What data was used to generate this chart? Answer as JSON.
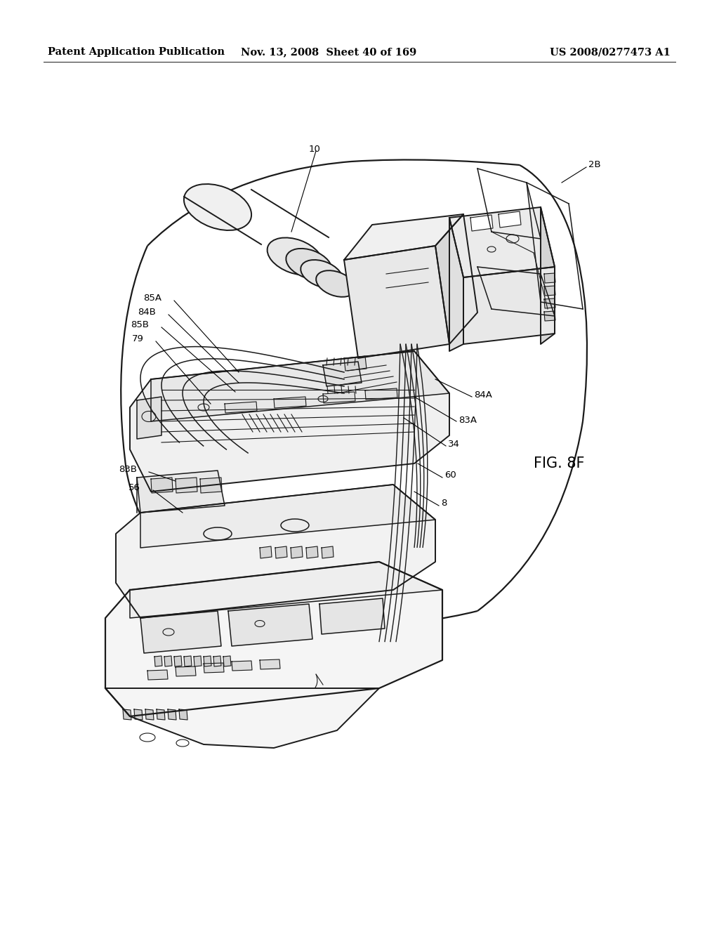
{
  "background_color": "#ffffff",
  "header_text_left": "Patent Application Publication",
  "header_text_mid": "Nov. 13, 2008  Sheet 40 of 169",
  "header_text_right": "US 2008/0277473 A1",
  "header_fontsize": 10.5,
  "figure_label": "FIG. 8F",
  "figure_label_fontsize": 15,
  "line_color": "#1a1a1a",
  "lw_main": 1.4,
  "lw_thin": 0.8,
  "lw_med": 1.1
}
